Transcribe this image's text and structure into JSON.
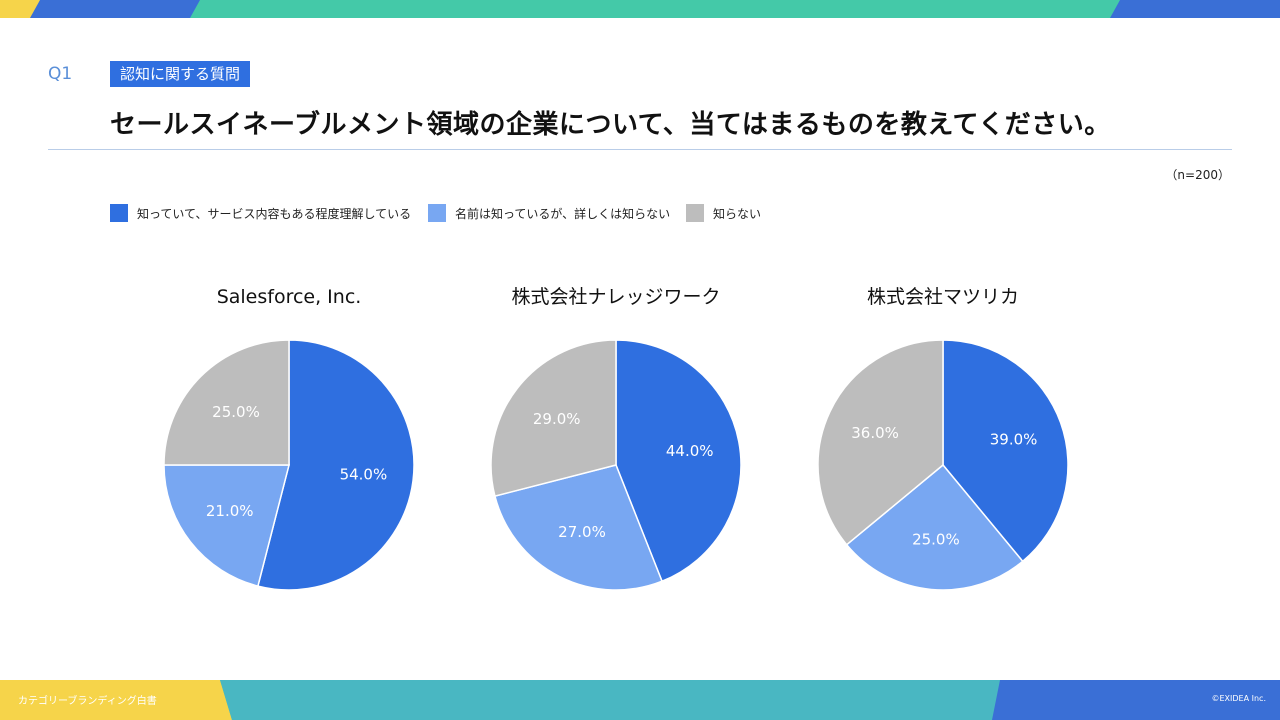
{
  "header": {
    "question_number": "Q1",
    "category_badge": "認知に関する質問",
    "title": "セールスイネーブルメント領域の企業について、当てはまるものを教えてください。",
    "sample_size": "（n=200）"
  },
  "footer": {
    "left": "カテゴリーブランディング白書",
    "right": "©EXIDEA Inc."
  },
  "colors": {
    "dark_blue": "#2f6fe0",
    "light_blue": "#78a7f2",
    "gray": "#bdbdbd",
    "accent_teal": "#44c9a8",
    "accent_yellow": "#f6d44a",
    "accent_blue": "#3a6fd6"
  },
  "chart_data": {
    "type": "pie",
    "legend": {
      "placement": "top-left",
      "entries": [
        "知っていて、サービス内容もある程度理解している",
        "名前は知っているが、詳しくは知らない",
        "知らない"
      ]
    },
    "charts": [
      {
        "title": "Salesforce, Inc.",
        "values": [
          54.0,
          21.0,
          25.0
        ],
        "labels": [
          "54.0%",
          "21.0%",
          "25.0%"
        ]
      },
      {
        "title": "株式会社ナレッジワーク",
        "values": [
          44.0,
          27.0,
          29.0
        ],
        "labels": [
          "44.0%",
          "27.0%",
          "29.0%"
        ]
      },
      {
        "title": "株式会社マツリカ",
        "values": [
          39.0,
          25.0,
          36.0
        ],
        "labels": [
          "39.0%",
          "25.0%",
          "36.0%"
        ]
      }
    ]
  }
}
